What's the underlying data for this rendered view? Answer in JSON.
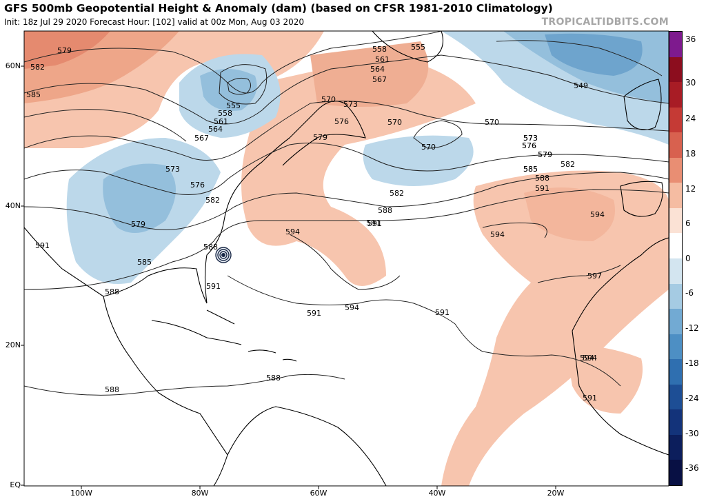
{
  "header": {
    "title": "GFS 500mb Geopotential Height & Anomaly (dam) (based on CFSR 1981-2010 Climatology)",
    "subtitle": "Init: 18z Jul 29 2020   Forecast Hour: [102]   valid at 00z Mon, Aug 03 2020",
    "brand": "TROPICALTIDBITS.COM"
  },
  "axes": {
    "lat_labels": [
      "60N",
      "40N",
      "20N",
      "EQ"
    ],
    "lon_labels": [
      "100W",
      "80W",
      "60W",
      "40W",
      "20W"
    ]
  },
  "contours": {
    "labels": [
      "579",
      "582",
      "585",
      "555",
      "558",
      "561",
      "564",
      "567",
      "570",
      "573",
      "576",
      "579",
      "573",
      "576",
      "582",
      "591",
      "585",
      "579",
      "588",
      "591",
      "558",
      "555",
      "561",
      "564",
      "567",
      "570",
      "573",
      "576",
      "579",
      "585",
      "570",
      "573",
      "576",
      "579",
      "582",
      "585",
      "588",
      "591",
      "594",
      "594",
      "591",
      "588",
      "594",
      "582",
      "588",
      "591",
      "594",
      "591",
      "591",
      "594",
      "597",
      "594",
      "591",
      "588",
      "588",
      "549",
      "570"
    ]
  },
  "colorbar": {
    "labels": [
      "36",
      "30",
      "24",
      "18",
      "12",
      "6",
      "0",
      "-6",
      "-12",
      "-18",
      "-24",
      "-30",
      "-36"
    ],
    "colors": [
      "#7e1a8e",
      "#8c0d1e",
      "#a81c25",
      "#c53a35",
      "#d8614f",
      "#e98e73",
      "#f5bca2",
      "#fbe2d5",
      "#ffffff",
      "#d3e5f0",
      "#a5cbe3",
      "#72aad3",
      "#4d8fc4",
      "#2f6fb0",
      "#1d4e95",
      "#13337a",
      "#0c1e5c",
      "#081044"
    ]
  },
  "storm": {
    "name": "tropical-cyclone"
  }
}
